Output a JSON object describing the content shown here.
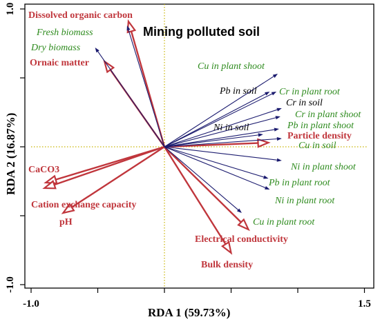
{
  "chart_data": {
    "type": "biplot",
    "title": "Mining polluted soil",
    "xlabel": "RDA 1 (59.73%)",
    "ylabel": "RDA 2 (16.87%)",
    "xlim": [
      -1.0,
      1.5
    ],
    "ylim": [
      -1.0,
      1.0
    ],
    "x_tick_labels": [
      {
        "value": -1.0,
        "label": "-1.0"
      },
      {
        "value": 1.5,
        "label": "1.5"
      }
    ],
    "y_tick_labels": [
      {
        "value": 1.0,
        "label": "1.0"
      },
      {
        "value": -1.0,
        "label": "-1.0"
      }
    ],
    "colors": {
      "environmental": "#c0363c",
      "species_arrow": "#1a1a6e",
      "label_green": "#2e8b1e",
      "label_black": "#000000",
      "reference_line": "#c8b400"
    },
    "environmental_vectors": [
      {
        "name": "Dissolved organic carbon",
        "x": -0.27,
        "y": 0.91
      },
      {
        "name": "Ornaic matter",
        "x": -0.45,
        "y": 0.62
      },
      {
        "name": "CaCO3",
        "x": -0.89,
        "y": -0.26
      },
      {
        "name": "Cation exchange capacity",
        "x": -0.9,
        "y": -0.3
      },
      {
        "name": "pH",
        "x": -0.76,
        "y": -0.48
      },
      {
        "name": "Particle density",
        "x": 0.78,
        "y": 0.03
      },
      {
        "name": "Electrical conductivity",
        "x": 0.63,
        "y": -0.6
      },
      {
        "name": "Bulk density",
        "x": 0.5,
        "y": -0.77
      }
    ],
    "response_vectors": [
      {
        "name": "Fresh biomass",
        "x": -0.28,
        "y": 0.88,
        "label_color": "green"
      },
      {
        "name": "Dry biomass",
        "x": -0.52,
        "y": 0.72,
        "label_color": "green"
      },
      {
        "name": "Cu in plant shoot",
        "x": 0.85,
        "y": 0.53,
        "label_color": "green"
      },
      {
        "name": "Pb in soil",
        "x": 0.79,
        "y": 0.4,
        "label_color": "black"
      },
      {
        "name": "Cr in plant root",
        "x": 0.84,
        "y": 0.4,
        "label_color": "green"
      },
      {
        "name": "Cr in soil",
        "x": 0.88,
        "y": 0.28,
        "label_color": "black"
      },
      {
        "name": "Cr in plant shoot",
        "x": 0.87,
        "y": 0.22,
        "label_color": "green"
      },
      {
        "name": "Pb in plant shoot",
        "x": 0.86,
        "y": 0.13,
        "label_color": "green"
      },
      {
        "name": "Ni in soil",
        "x": 0.74,
        "y": 0.09,
        "label_color": "black"
      },
      {
        "name": "Cu in soil",
        "x": 0.88,
        "y": 0.06,
        "label_color": "green"
      },
      {
        "name": "Ni in plant shoot",
        "x": 0.88,
        "y": -0.1,
        "label_color": "green"
      },
      {
        "name": "Pb in plant root",
        "x": 0.78,
        "y": -0.23,
        "label_color": "green"
      },
      {
        "name": "Ni in plant root",
        "x": 0.79,
        "y": -0.31,
        "label_color": "green"
      },
      {
        "name": "Cu in plant root",
        "x": 0.58,
        "y": -0.48,
        "label_color": "green"
      }
    ],
    "reference_lines": {
      "x": 0,
      "y": 0,
      "style": "dotted"
    }
  }
}
